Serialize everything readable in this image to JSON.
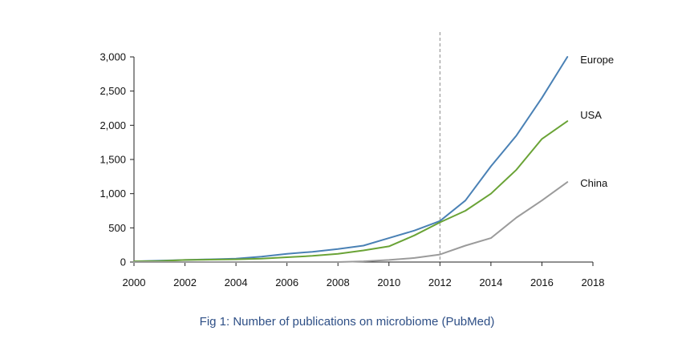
{
  "caption": "Fig 1: Number of publications on microbiome (PubMed)",
  "chart_data": {
    "type": "line",
    "title": "",
    "xlabel": "",
    "ylabel": "",
    "xlim": [
      2000,
      2018
    ],
    "ylim": [
      0,
      3000
    ],
    "x_ticks": [
      2000,
      2002,
      2004,
      2006,
      2008,
      2010,
      2012,
      2014,
      2016,
      2018
    ],
    "x_tick_labels": [
      "2000",
      "2002",
      "2004",
      "2006",
      "2008",
      "2010",
      "2012",
      "2014",
      "2016",
      "2018"
    ],
    "y_ticks": [
      0,
      500,
      1000,
      1500,
      2000,
      2500,
      3000
    ],
    "y_tick_labels": [
      "0",
      "500",
      "1,000",
      "1,500",
      "2,000",
      "2,500",
      "3,000"
    ],
    "grid": false,
    "legend": "none",
    "reference_line": {
      "x": 2012,
      "style": "dashed",
      "color": "#888888"
    },
    "series": [
      {
        "name": "Europe",
        "color": "#4a81b5",
        "x": [
          2000,
          2001,
          2002,
          2003,
          2004,
          2005,
          2006,
          2007,
          2008,
          2009,
          2010,
          2011,
          2012,
          2013,
          2014,
          2015,
          2016,
          2017
        ],
        "y": [
          10,
          20,
          30,
          40,
          50,
          80,
          120,
          150,
          190,
          240,
          350,
          460,
          600,
          900,
          1400,
          1850,
          2400,
          3000
        ]
      },
      {
        "name": "USA",
        "color": "#6aa336",
        "x": [
          2000,
          2001,
          2002,
          2003,
          2004,
          2005,
          2006,
          2007,
          2008,
          2009,
          2010,
          2011,
          2012,
          2013,
          2014,
          2015,
          2016,
          2017
        ],
        "y": [
          10,
          15,
          30,
          35,
          40,
          50,
          70,
          90,
          120,
          170,
          230,
          390,
          580,
          750,
          1000,
          1350,
          1800,
          2060
        ]
      },
      {
        "name": "China",
        "color": "#9b9b9b",
        "x": [
          2000,
          2001,
          2002,
          2003,
          2004,
          2005,
          2006,
          2007,
          2008,
          2009,
          2010,
          2011,
          2012,
          2013,
          2014,
          2015,
          2016,
          2017
        ],
        "y": [
          0,
          0,
          0,
          0,
          0,
          0,
          0,
          0,
          0,
          10,
          30,
          60,
          110,
          240,
          350,
          650,
          900,
          1170
        ]
      }
    ]
  }
}
